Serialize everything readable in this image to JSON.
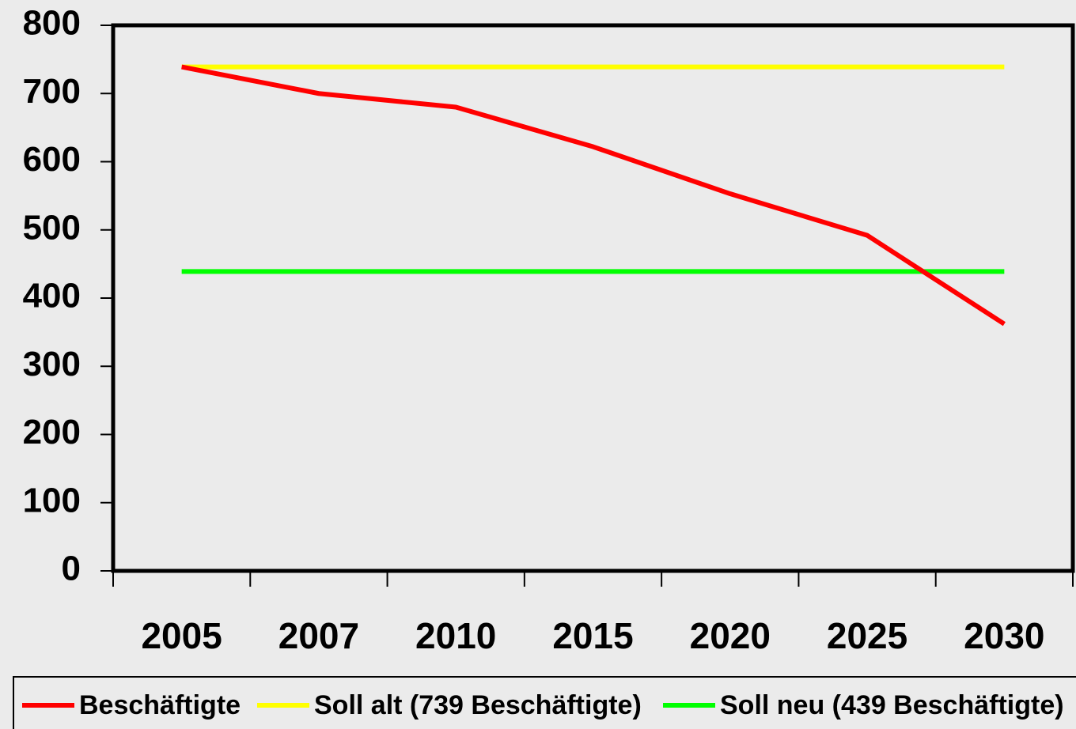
{
  "chart_data": {
    "type": "line",
    "categories": [
      "2005",
      "2007",
      "2010",
      "2015",
      "2020",
      "2025",
      "2030"
    ],
    "series": [
      {
        "name": "Beschäftigte",
        "color": "#ff0000",
        "values": [
          739,
          700,
          680,
          622,
          553,
          492,
          362
        ]
      },
      {
        "name": "Soll alt (739 Beschäftigte)",
        "color": "#ffff00",
        "values": [
          739,
          739,
          739,
          739,
          739,
          739,
          739
        ]
      },
      {
        "name": "Soll neu (439 Beschäftigte)",
        "color": "#00ff00",
        "values": [
          439,
          439,
          439,
          439,
          439,
          439,
          439
        ]
      }
    ],
    "ylim": [
      0,
      800
    ],
    "yticks": [
      0,
      100,
      200,
      300,
      400,
      500,
      600,
      700,
      800
    ],
    "grid": false,
    "legend": "bottom"
  }
}
